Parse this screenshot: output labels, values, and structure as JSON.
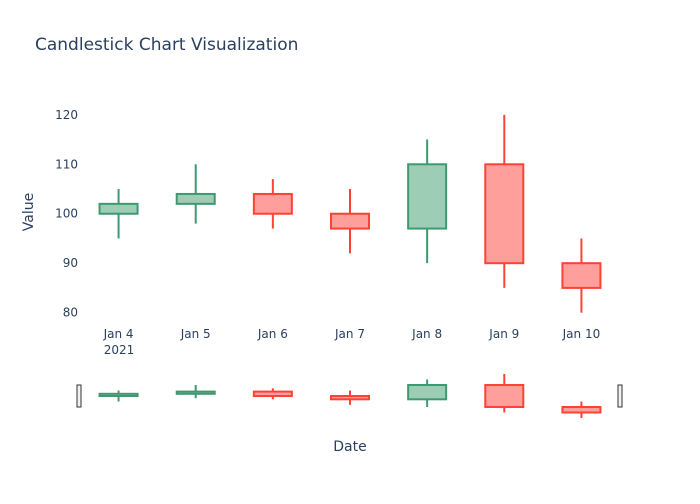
{
  "chart_data": {
    "type": "candlestick",
    "title": "Candlestick Chart Visualization",
    "xlabel": "Date",
    "ylabel": "Value",
    "year_label": "2021",
    "ylim": [
      77.5,
      123
    ],
    "yticks": [
      80,
      90,
      100,
      110,
      120
    ],
    "categories": [
      "Jan 4",
      "Jan 5",
      "Jan 6",
      "Jan 7",
      "Jan 8",
      "Jan 9",
      "Jan 10"
    ],
    "ohlc": [
      {
        "open": 100,
        "high": 105,
        "low": 95,
        "close": 102
      },
      {
        "open": 102,
        "high": 110,
        "low": 98,
        "close": 104
      },
      {
        "open": 104,
        "high": 107,
        "low": 97,
        "close": 100
      },
      {
        "open": 100,
        "high": 105,
        "low": 92,
        "close": 97
      },
      {
        "open": 97,
        "high": 115,
        "low": 90,
        "close": 110
      },
      {
        "open": 110,
        "high": 120,
        "low": 85,
        "close": 90
      },
      {
        "open": 90,
        "high": 95,
        "low": 80,
        "close": 85
      }
    ],
    "rangeslider": true,
    "colors": {
      "increasing_line": "#3D9970",
      "increasing_fill": "#9ECDB5",
      "decreasing_line": "#FF4136",
      "decreasing_fill": "#FF9F9B",
      "text": "#2a3f5f"
    }
  }
}
